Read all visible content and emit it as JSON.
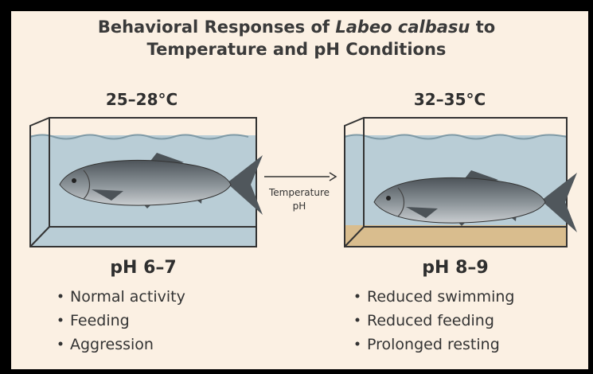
{
  "title": {
    "prefix": "Behavioral Responses of",
    "species": "Labeo calbasu",
    "suffix": "to",
    "line2": "Temperature and pH Conditions"
  },
  "left": {
    "temperature": "25–28°C",
    "ph": "pH 6–7",
    "behaviors": [
      "Normal activity",
      "Feeding",
      "Aggression"
    ]
  },
  "right": {
    "temperature": "32–35°C",
    "ph": "pH 8–9",
    "behaviors": [
      "Reduced swimming",
      "Reduced feeding",
      "Prolonged resting"
    ]
  },
  "arrow": {
    "labels": [
      "Temperature",
      "pH"
    ]
  }
}
